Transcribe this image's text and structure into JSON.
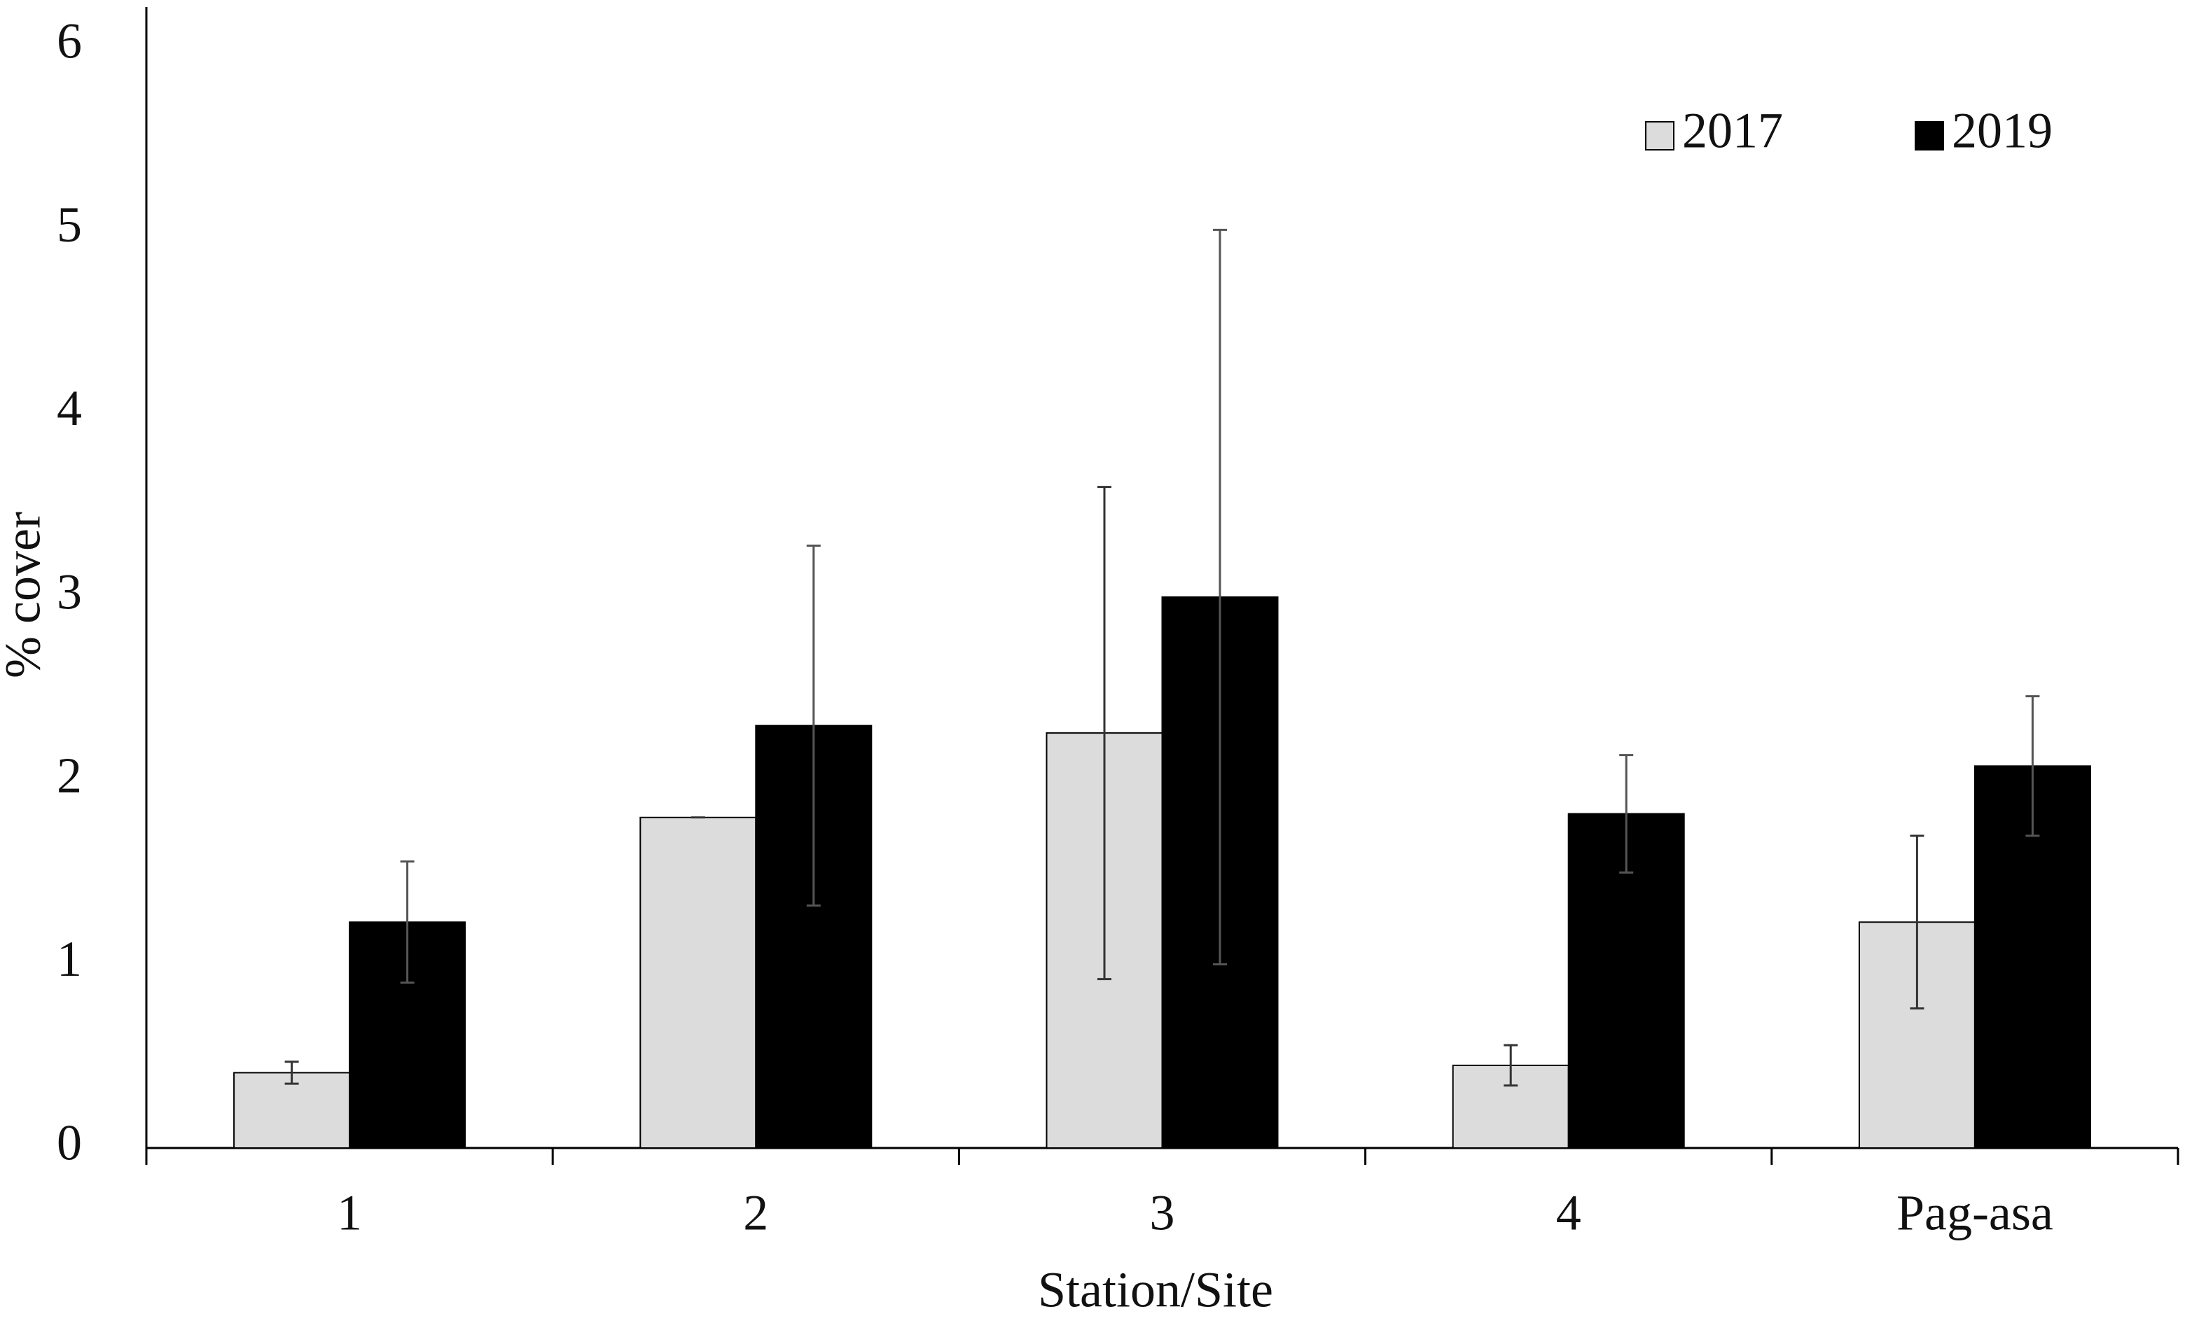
{
  "chart_data": {
    "type": "bar",
    "x_label": "Station/Site",
    "y_label": "% cover",
    "categories": [
      "1",
      "2",
      "3",
      "4",
      "Pag-asa"
    ],
    "series": [
      {
        "name": "2017",
        "color": "#dcdcdc",
        "values": [
          0.41,
          1.8,
          2.26,
          0.45,
          1.23
        ],
        "errors": [
          0.06,
          0,
          1.34,
          0.11,
          0.47
        ]
      },
      {
        "name": "2019",
        "color": "#000000",
        "values": [
          1.23,
          2.3,
          3.0,
          1.82,
          2.08
        ],
        "errors": [
          0.33,
          0.98,
          2.0,
          0.32,
          0.38
        ]
      }
    ],
    "ylim": [
      0,
      6
    ],
    "yticks": [
      0,
      1,
      2,
      3,
      4,
      5,
      6
    ],
    "grid": false,
    "legend": "upper right"
  }
}
